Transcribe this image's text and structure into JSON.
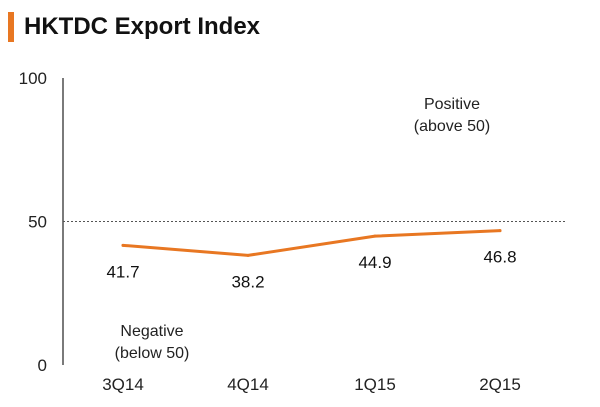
{
  "title": "HKTDC Export Index",
  "colors": {
    "accent": "#E87722",
    "line": "#E87722",
    "axis": "#222222",
    "threshold": "#555555",
    "text": "#111111"
  },
  "chart_data": {
    "type": "line",
    "title": "HKTDC Export Index",
    "xlabel": "",
    "ylabel": "",
    "ylim": [
      0,
      100
    ],
    "yticks": [
      "0",
      "50",
      "100"
    ],
    "categories": [
      "3Q14",
      "4Q14",
      "1Q15",
      "2Q15"
    ],
    "series": [
      {
        "name": "Export Index",
        "values": [
          41.7,
          38.2,
          44.9,
          46.8
        ],
        "labels": [
          "41.7",
          "38.2",
          "44.9",
          "46.8"
        ]
      }
    ],
    "threshold": 50,
    "annotations": {
      "positive": [
        "Positive",
        "(above 50)"
      ],
      "negative": [
        "Negative",
        "(below 50)"
      ]
    }
  }
}
